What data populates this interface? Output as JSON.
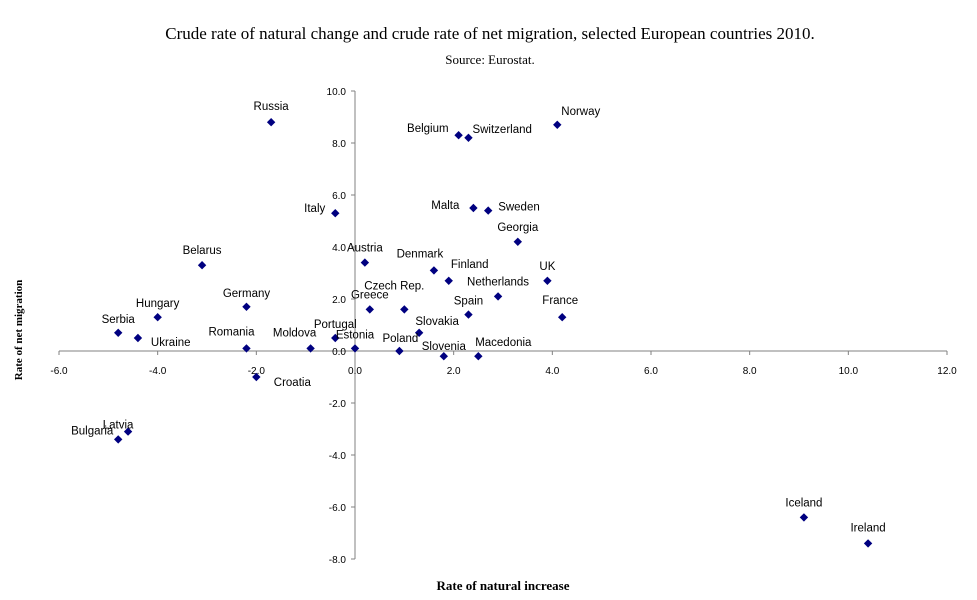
{
  "chart_data": {
    "type": "scatter",
    "title": "Crude rate of natural change and crude rate of net migration, selected European countries 2010.",
    "subtitle": "Source: Eurostat.",
    "xlabel": "Rate of natural increase",
    "ylabel": "Rate of net migration",
    "xlim": [
      -6,
      12
    ],
    "ylim": [
      -8,
      10
    ],
    "x_ticks": [
      "-6.0",
      "-4.0",
      "-2.0",
      "0.0",
      "2.0",
      "4.0",
      "6.0",
      "8.0",
      "10.0",
      "12.0"
    ],
    "y_ticks": [
      "10.0",
      "8.0",
      "6.0",
      "4.0",
      "2.0",
      "0.0",
      "-2.0",
      "-4.0",
      "-6.0",
      "-8.0"
    ],
    "marker_color": "#000080",
    "points": [
      {
        "label": "Russia",
        "x": -1.7,
        "y": 8.8
      },
      {
        "label": "Belgium",
        "x": 2.1,
        "y": 8.3
      },
      {
        "label": "Switzerland",
        "x": 2.3,
        "y": 8.2
      },
      {
        "label": "Norway",
        "x": 4.1,
        "y": 8.7
      },
      {
        "label": "Italy",
        "x": -0.4,
        "y": 5.3
      },
      {
        "label": "Malta",
        "x": 2.4,
        "y": 5.5
      },
      {
        "label": "Sweden",
        "x": 2.7,
        "y": 5.4
      },
      {
        "label": "Georgia",
        "x": 3.3,
        "y": 4.2
      },
      {
        "label": "Belarus",
        "x": -3.1,
        "y": 3.3
      },
      {
        "label": "Austria",
        "x": 0.2,
        "y": 3.4
      },
      {
        "label": "Denmark",
        "x": 1.6,
        "y": 3.1
      },
      {
        "label": "Finland",
        "x": 1.9,
        "y": 2.7
      },
      {
        "label": "UK",
        "x": 3.9,
        "y": 2.7
      },
      {
        "label": "Netherlands",
        "x": 2.9,
        "y": 2.1
      },
      {
        "label": "Czech Rep.",
        "x": 1.0,
        "y": 1.6
      },
      {
        "label": "Greece",
        "x": 0.3,
        "y": 1.6
      },
      {
        "label": "Germany",
        "x": -2.2,
        "y": 1.7
      },
      {
        "label": "Hungary",
        "x": -4.0,
        "y": 1.3
      },
      {
        "label": "Spain",
        "x": 2.3,
        "y": 1.4
      },
      {
        "label": "France",
        "x": 4.2,
        "y": 1.3
      },
      {
        "label": "Serbia",
        "x": -4.8,
        "y": 0.7
      },
      {
        "label": "Ukraine",
        "x": -4.4,
        "y": 0.5
      },
      {
        "label": "Portugal",
        "x": -0.4,
        "y": 0.5
      },
      {
        "label": "Slovakia",
        "x": 1.3,
        "y": 0.7
      },
      {
        "label": "Romania",
        "x": -2.2,
        "y": 0.1
      },
      {
        "label": "Moldova",
        "x": -0.9,
        "y": 0.1
      },
      {
        "label": "Estonia",
        "x": 0.0,
        "y": 0.1
      },
      {
        "label": "Poland",
        "x": 0.9,
        "y": 0.0
      },
      {
        "label": "Slovenia",
        "x": 1.8,
        "y": -0.2
      },
      {
        "label": "Macedonia",
        "x": 2.5,
        "y": -0.2
      },
      {
        "label": "Croatia",
        "x": -2.0,
        "y": -1.0
      },
      {
        "label": "Latvia",
        "x": -4.6,
        "y": -3.1
      },
      {
        "label": "Bulgaria",
        "x": -4.8,
        "y": -3.4
      },
      {
        "label": "Iceland",
        "x": 9.1,
        "y": -6.4
      },
      {
        "label": "Ireland",
        "x": 10.4,
        "y": -7.4
      }
    ]
  }
}
